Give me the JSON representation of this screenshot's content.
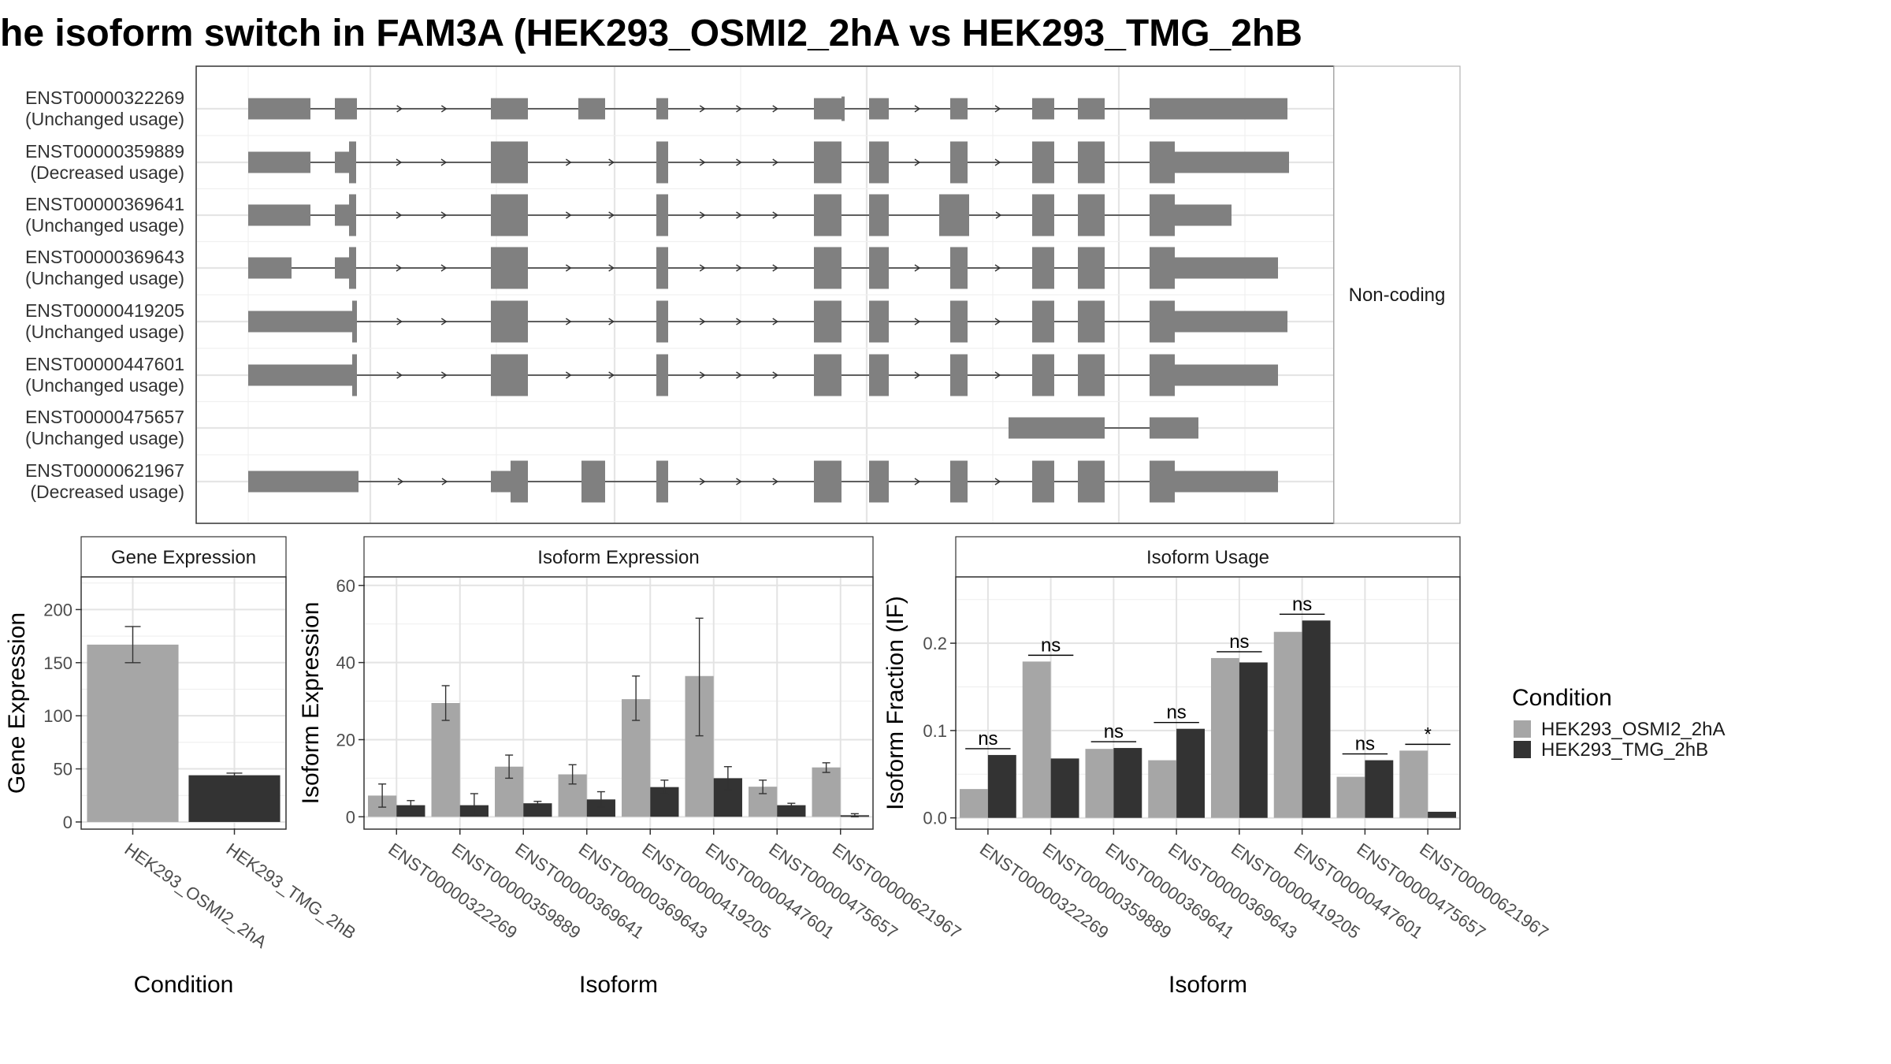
{
  "title": "he isoform switch in FAM3A (HEK293_OSMI2_2hA vs HEK293_TMG_2hB",
  "colors": {
    "osmi": "#a6a6a6",
    "tmg": "#333333",
    "exon": "#808080"
  },
  "chart_data": [
    {
      "type": "structure",
      "strip": "Non-coding",
      "isoforms": [
        {
          "id": "ENST00000322269",
          "usage": "(Unchanged usage)"
        },
        {
          "id": "ENST00000359889",
          "usage": "(Decreased usage)"
        },
        {
          "id": "ENST00000369641",
          "usage": "(Unchanged usage)"
        },
        {
          "id": "ENST00000369643",
          "usage": "(Unchanged usage)"
        },
        {
          "id": "ENST00000419205",
          "usage": "(Unchanged usage)"
        },
        {
          "id": "ENST00000447601",
          "usage": "(Unchanged usage)"
        },
        {
          "id": "ENST00000475657",
          "usage": "(Unchanged usage)"
        },
        {
          "id": "ENST00000621967",
          "usage": "(Decreased usage)"
        }
      ]
    },
    {
      "type": "bar",
      "title": "Gene Expression",
      "xlabel": "Condition",
      "ylabel": "Gene Expression",
      "categories": [
        "HEK293_OSMI2_2hA",
        "HEK293_TMG_2hB"
      ],
      "values": [
        167,
        44
      ],
      "errors": [
        [
          150,
          184
        ],
        [
          41,
          46
        ]
      ],
      "ylim": [
        -6,
        230
      ],
      "yticks": [
        0,
        50,
        100,
        150,
        200
      ]
    },
    {
      "type": "bar",
      "title": "Isoform Expression",
      "xlabel": "Isoform",
      "ylabel": "Isoform Expression",
      "categories": [
        "ENST00000322269",
        "ENST00000359889",
        "ENST00000369641",
        "ENST00000369643",
        "ENST00000419205",
        "ENST00000447601",
        "ENST00000475657",
        "ENST00000621967"
      ],
      "series": [
        {
          "name": "HEK293_OSMI2_2hA",
          "values": [
            5.5,
            29.5,
            13,
            11,
            30.5,
            36.5,
            7.8,
            12.8
          ],
          "errors": [
            [
              2.5,
              8.5
            ],
            [
              25,
              34
            ],
            [
              10,
              16
            ],
            [
              8.5,
              13.5
            ],
            [
              25,
              36.5
            ],
            [
              21,
              51.5
            ],
            [
              6,
              9.5
            ],
            [
              11.5,
              14
            ]
          ]
        },
        {
          "name": "HEK293_TMG_2hB",
          "values": [
            3,
            3,
            3.5,
            4.5,
            7.7,
            10,
            3,
            0.4
          ],
          "errors": [
            [
              1.8,
              4.2
            ],
            [
              0.5,
              6
            ],
            [
              3,
              4
            ],
            [
              2.5,
              6.5
            ],
            [
              6,
              9.5
            ],
            [
              7,
              13
            ],
            [
              2,
              3.5
            ],
            [
              0,
              0.8
            ]
          ]
        }
      ],
      "ylim": [
        -3,
        62
      ],
      "yticks": [
        0,
        20,
        40,
        60
      ]
    },
    {
      "type": "bar",
      "title": "Isoform Usage",
      "xlabel": "Isoform",
      "ylabel": "Isoform Fraction (IF)",
      "categories": [
        "ENST00000322269",
        "ENST00000359889",
        "ENST00000369641",
        "ENST00000369643",
        "ENST00000419205",
        "ENST00000447601",
        "ENST00000475657",
        "ENST00000621967"
      ],
      "series": [
        {
          "name": "HEK293_OSMI2_2hA",
          "values": [
            0.033,
            0.179,
            0.079,
            0.066,
            0.183,
            0.213,
            0.047,
            0.077
          ]
        },
        {
          "name": "HEK293_TMG_2hB",
          "values": [
            0.072,
            0.068,
            0.08,
            0.102,
            0.178,
            0.226,
            0.066,
            0.007
          ]
        }
      ],
      "significance": [
        "ns",
        "ns",
        "ns",
        "ns",
        "ns",
        "ns",
        "ns",
        "*"
      ],
      "ylim": [
        -0.012,
        0.275
      ],
      "yticks": [
        "0.0",
        "0.1",
        "0.2"
      ]
    }
  ],
  "legend": {
    "title": "Condition",
    "items": [
      {
        "label": "HEK293_OSMI2_2hA",
        "color": "#a6a6a6"
      },
      {
        "label": "HEK293_TMG_2hB",
        "color": "#333333"
      }
    ],
    "position": "right"
  }
}
